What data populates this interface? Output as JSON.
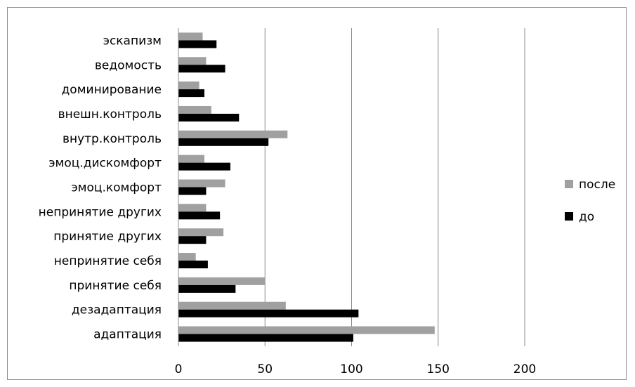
{
  "chart_data": {
    "type": "bar",
    "orientation": "horizontal",
    "categories": [
      "эскапизм",
      "ведомость",
      "доминирование",
      "внешн.контроль",
      "внутр.контроль",
      "эмоц.дискомфорт",
      "эмоц.комфорт",
      "непринятие других",
      "принятие других",
      "непринятие себя",
      "принятие себя",
      "дезадаптация",
      "адаптация"
    ],
    "series": [
      {
        "name": "после",
        "color": "#a0a0a0",
        "values": [
          14,
          16,
          12,
          19,
          63,
          15,
          27,
          16,
          26,
          10,
          50,
          62,
          148
        ]
      },
      {
        "name": "до",
        "color": "#000000",
        "values": [
          22,
          27,
          15,
          35,
          52,
          30,
          16,
          24,
          16,
          17,
          33,
          104,
          101
        ]
      }
    ],
    "xlim": [
      0,
      200
    ],
    "xticks": [
      "0",
      "50",
      "100",
      "150",
      "200"
    ],
    "grid": "vertical",
    "legend": "right"
  }
}
